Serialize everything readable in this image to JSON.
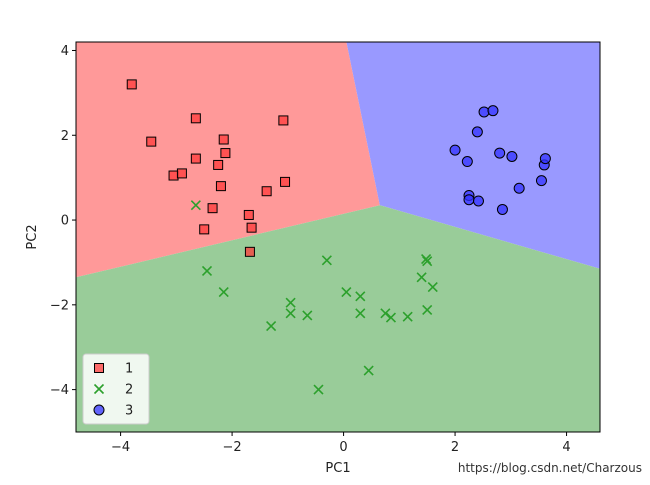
{
  "chart_data": {
    "type": "scatter",
    "title": "",
    "xlabel": "PC1",
    "ylabel": "PC2",
    "xlim": [
      -4.8,
      4.6
    ],
    "ylim": [
      -5.0,
      4.2
    ],
    "xticks": [
      -4,
      -2,
      0,
      2,
      4
    ],
    "yticks": [
      -4,
      -2,
      0,
      2,
      4
    ],
    "xtick_labels": [
      "−4",
      "−2",
      "0",
      "2",
      "4"
    ],
    "ytick_labels": [
      "−4",
      "−2",
      "0",
      "2",
      "4"
    ],
    "grid": false,
    "legend_position": "lower-left",
    "regions": [
      {
        "label": "1",
        "color": "#ff9999",
        "polygon": [
          [
            -4.8,
            4.2
          ],
          [
            0.05,
            4.2
          ],
          [
            0.65,
            0.35
          ],
          [
            -4.8,
            -1.35
          ]
        ]
      },
      {
        "label": "3",
        "color": "#9999ff",
        "polygon": [
          [
            0.05,
            4.2
          ],
          [
            4.6,
            4.2
          ],
          [
            4.6,
            -1.15
          ],
          [
            0.65,
            0.35
          ]
        ]
      },
      {
        "label": "2",
        "color": "#99cc99",
        "polygon": [
          [
            -4.8,
            -1.35
          ],
          [
            0.65,
            0.35
          ],
          [
            4.6,
            -1.15
          ],
          [
            4.6,
            -5.0
          ],
          [
            -4.8,
            -5.0
          ]
        ]
      }
    ],
    "series": [
      {
        "name": "1",
        "marker": "square",
        "color": "#ff3b3b",
        "points": [
          [
            -3.8,
            3.2
          ],
          [
            -3.45,
            1.85
          ],
          [
            -3.05,
            1.05
          ],
          [
            -2.9,
            1.1
          ],
          [
            -2.65,
            2.4
          ],
          [
            -2.65,
            1.45
          ],
          [
            -2.5,
            -0.22
          ],
          [
            -2.35,
            0.28
          ],
          [
            -2.25,
            1.3
          ],
          [
            -2.2,
            0.8
          ],
          [
            -2.15,
            1.9
          ],
          [
            -2.12,
            1.58
          ],
          [
            -1.7,
            0.12
          ],
          [
            -1.65,
            -0.18
          ],
          [
            -1.68,
            -0.75
          ],
          [
            -1.38,
            0.68
          ],
          [
            -1.08,
            2.35
          ],
          [
            -1.05,
            0.9
          ]
        ]
      },
      {
        "name": "2",
        "marker": "x",
        "color": "#2ca02c",
        "points": [
          [
            -2.65,
            0.35
          ],
          [
            -2.45,
            -1.2
          ],
          [
            -2.15,
            -1.7
          ],
          [
            -1.3,
            -2.5
          ],
          [
            -0.95,
            -1.95
          ],
          [
            -0.95,
            -2.2
          ],
          [
            -0.65,
            -2.25
          ],
          [
            -0.45,
            -4.0
          ],
          [
            -0.3,
            -0.95
          ],
          [
            0.05,
            -1.7
          ],
          [
            0.3,
            -1.8
          ],
          [
            0.3,
            -2.2
          ],
          [
            0.45,
            -3.55
          ],
          [
            0.75,
            -2.2
          ],
          [
            0.85,
            -2.3
          ],
          [
            1.15,
            -2.28
          ],
          [
            1.4,
            -1.35
          ],
          [
            1.48,
            -0.92
          ],
          [
            1.5,
            -0.97
          ],
          [
            1.5,
            -2.12
          ],
          [
            1.6,
            -1.58
          ]
        ]
      },
      {
        "name": "3",
        "marker": "circle",
        "color": "#3333ff",
        "points": [
          [
            2.0,
            1.65
          ],
          [
            2.22,
            1.38
          ],
          [
            2.25,
            0.58
          ],
          [
            2.25,
            0.48
          ],
          [
            2.4,
            2.08
          ],
          [
            2.42,
            0.45
          ],
          [
            2.52,
            2.55
          ],
          [
            2.68,
            2.58
          ],
          [
            2.8,
            1.58
          ],
          [
            2.85,
            0.25
          ],
          [
            3.02,
            1.5
          ],
          [
            3.15,
            0.75
          ],
          [
            3.55,
            0.93
          ],
          [
            3.6,
            1.3
          ],
          [
            3.62,
            1.45
          ]
        ]
      }
    ]
  },
  "watermark": "https://blog.csdn.net/Charzous"
}
